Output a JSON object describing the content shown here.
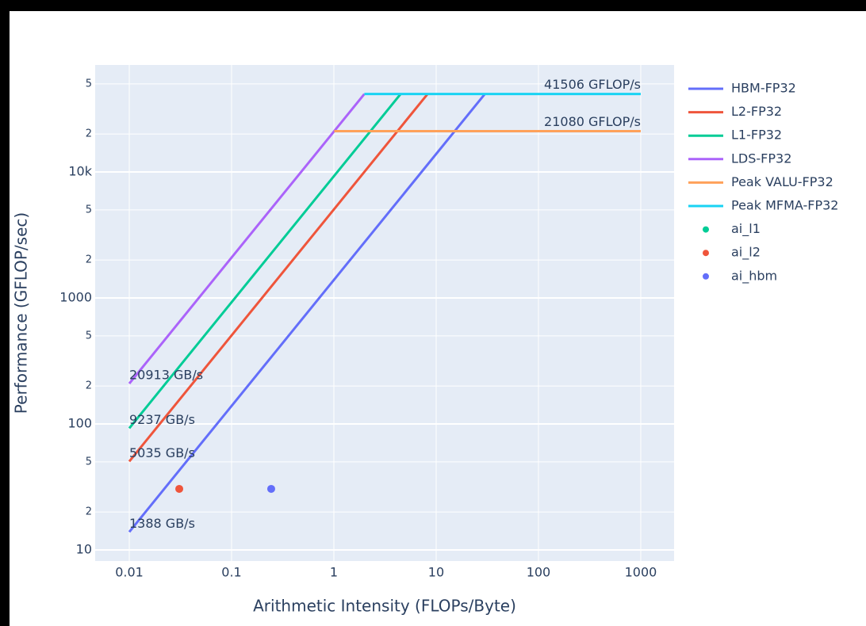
{
  "chart_data": {
    "type": "line",
    "x_label": "Arithmetic Intensity (FLOPs/Byte)",
    "y_label": "Performance (GFLOP/sec)",
    "log_x": true,
    "log_y": true,
    "grid": true,
    "xlim": [
      0.00464,
      2118
    ],
    "ylim": [
      8.16,
      70600
    ],
    "xticks": [
      0.01,
      0.1,
      1,
      10,
      100,
      1000
    ],
    "yticks": [
      10,
      {
        "value": 20,
        "label": "2"
      },
      {
        "value": 50,
        "label": "5"
      },
      100,
      {
        "value": 200,
        "label": "2"
      },
      {
        "value": 500,
        "label": "5"
      },
      1000,
      {
        "value": 2000,
        "label": "2"
      },
      {
        "value": 5000,
        "label": "5"
      },
      {
        "value": 10000,
        "label": "10k"
      },
      {
        "value": 20000,
        "label": "2"
      },
      {
        "value": 50000,
        "label": "5"
      }
    ],
    "legend": "right",
    "series": [
      {
        "name": "HBM-FP32",
        "color": "#636efa",
        "mode": "lines",
        "x": [
          0.01,
          29.9
        ],
        "values": [
          13.88,
          41506
        ],
        "label": "1388 GB/s"
      },
      {
        "name": "L2-FP32",
        "color": "#ef553b",
        "mode": "lines",
        "x": [
          0.01,
          8.24
        ],
        "values": [
          50.35,
          41506
        ],
        "label": "5035 GB/s"
      },
      {
        "name": "L1-FP32",
        "color": "#00cc96",
        "mode": "lines",
        "x": [
          0.01,
          4.49
        ],
        "values": [
          92.37,
          41506
        ],
        "label": "9237 GB/s"
      },
      {
        "name": "LDS-FP32",
        "color": "#ab63fa",
        "mode": "lines",
        "x": [
          0.01,
          1.985
        ],
        "values": [
          209.13,
          41506
        ],
        "label": "20913 GB/s"
      },
      {
        "name": "Peak VALU-FP32",
        "color": "#ffa15a",
        "mode": "lines",
        "x": [
          1.008,
          1000
        ],
        "values": [
          21080,
          21080
        ],
        "label": "21080 GFLOP/s"
      },
      {
        "name": "Peak MFMA-FP32",
        "color": "#19d3f3",
        "mode": "lines",
        "x": [
          1.985,
          1000
        ],
        "values": [
          41506,
          41506
        ],
        "label": "41506 GFLOP/s"
      },
      {
        "name": "ai_l1",
        "color": "#00cc96",
        "mode": "markers",
        "x": [],
        "values": []
      },
      {
        "name": "ai_l2",
        "color": "#ef553b",
        "mode": "markers",
        "x": [
          0.0308
        ],
        "values": [
          30.5
        ]
      },
      {
        "name": "ai_hbm",
        "color": "#636efa",
        "mode": "markers",
        "x": [
          0.244
        ],
        "values": [
          30.5
        ]
      }
    ]
  }
}
